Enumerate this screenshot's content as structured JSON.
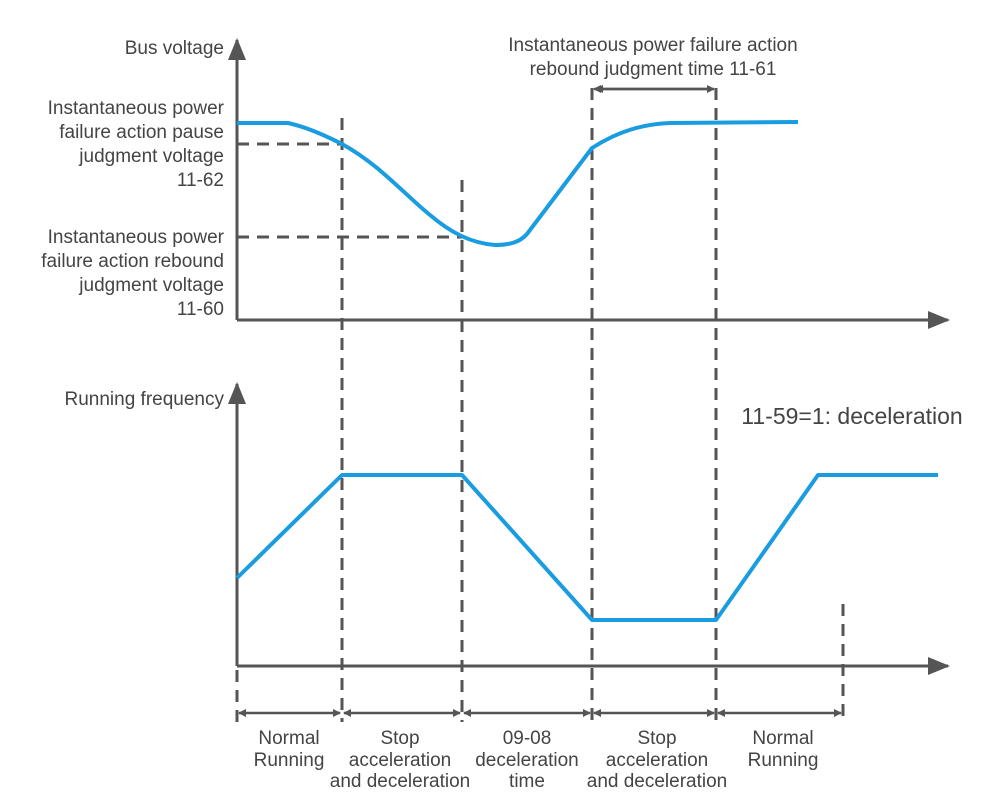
{
  "top_axis_label": "Bus voltage",
  "bottom_axis_label": "Running frequency",
  "pause_voltage_label": [
    "Instantaneous power",
    "failure action pause",
    "judgment voltage",
    "11-62"
  ],
  "rebound_voltage_label": [
    "Instantaneous power",
    "failure action rebound",
    "judgment voltage",
    "11-60"
  ],
  "rebound_time_label": [
    "Instantaneous power failure action",
    "rebound judgment time 11-61"
  ],
  "mode_label": "11-59=1: deceleration",
  "phases": [
    {
      "lines": [
        "Normal",
        "Running"
      ]
    },
    {
      "lines": [
        "Stop",
        "acceleration",
        "and deceleration"
      ]
    },
    {
      "lines": [
        "09-08",
        "deceleration",
        "time"
      ]
    },
    {
      "lines": [
        "Stop",
        "acceleration",
        "and deceleration"
      ]
    },
    {
      "lines": [
        "Normal",
        "Running"
      ]
    }
  ],
  "colors": {
    "curve": "#1a9de0",
    "axis": "#555555",
    "text": "#444444"
  }
}
